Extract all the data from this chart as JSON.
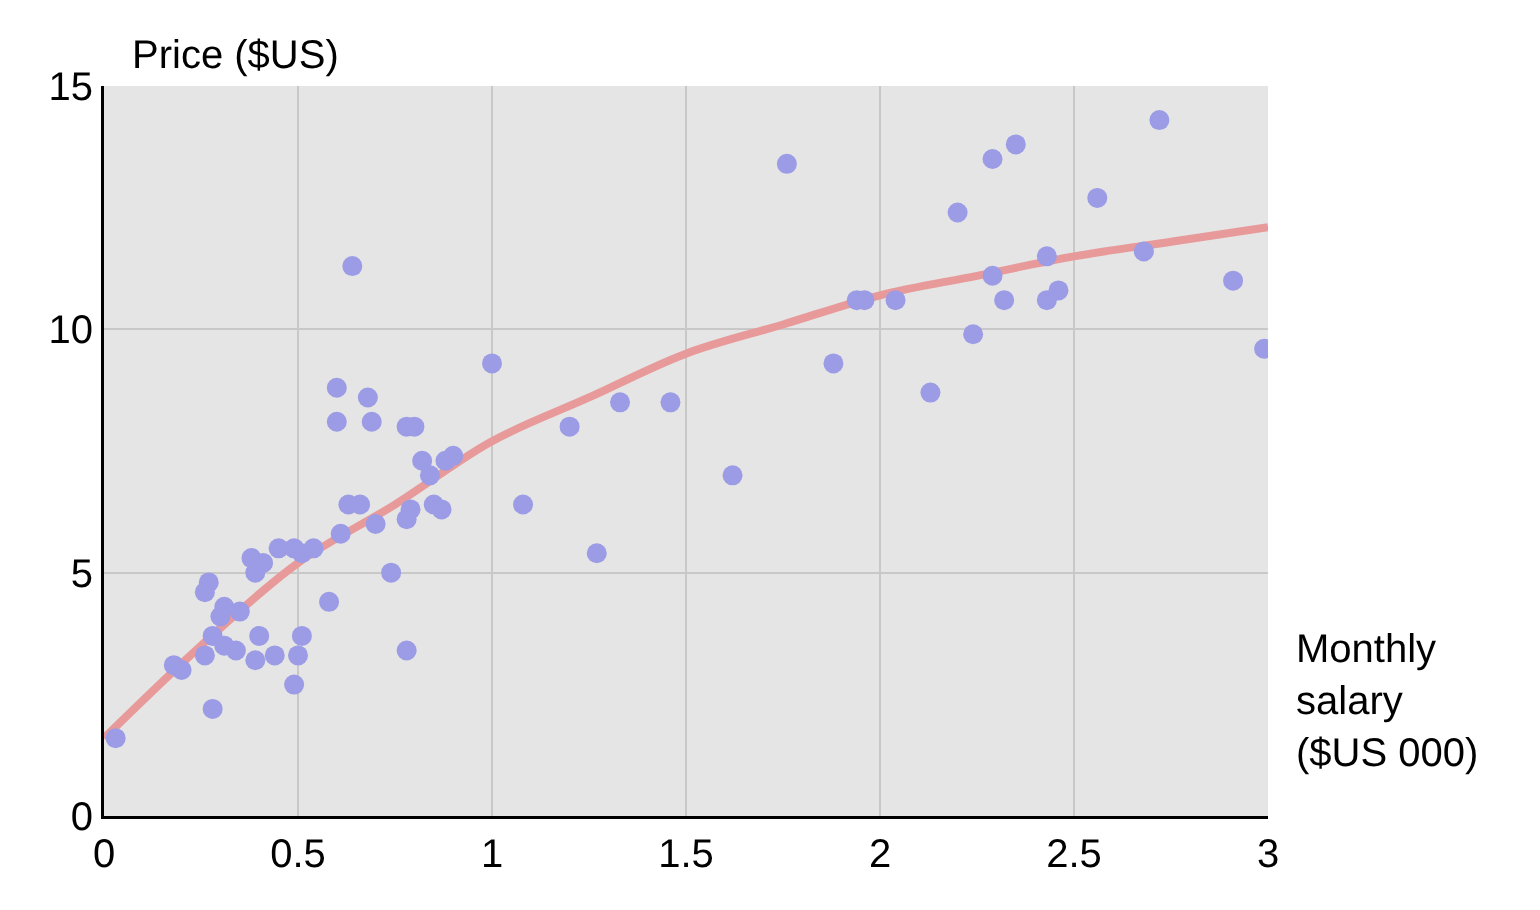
{
  "chart_data": {
    "type": "scatter",
    "xlabel": "Monthly salary ($US 000)",
    "ylabel": "Price ($US)",
    "xlim": [
      0,
      3
    ],
    "ylim": [
      0,
      15
    ],
    "xticks": [
      0,
      0.5,
      1,
      1.5,
      2,
      2.5,
      3
    ],
    "yticks": [
      0,
      5,
      10,
      15
    ],
    "grid": true,
    "marker": "circle",
    "series": [
      {
        "color": "#9b9be6",
        "x": [
          0.03,
          0.18,
          0.2,
          0.26,
          0.28,
          0.28,
          0.31,
          0.34,
          0.3,
          0.31,
          0.35,
          0.26,
          0.27,
          0.4,
          0.39,
          0.44,
          0.38,
          0.39,
          0.41,
          0.45,
          0.49,
          0.51,
          0.54,
          0.51,
          0.5,
          0.49,
          0.58,
          0.61,
          0.74,
          0.78,
          0.63,
          0.66,
          0.7,
          0.78,
          0.79,
          0.85,
          0.87,
          0.84,
          0.82,
          0.88,
          0.9,
          0.6,
          0.69,
          0.6,
          0.68,
          0.78,
          0.8,
          0.64,
          1.0,
          1.2,
          1.33,
          1.46,
          1.08,
          1.27,
          1.76,
          1.62,
          1.88,
          1.94,
          1.96,
          2.04,
          2.13,
          2.24,
          2.2,
          2.29,
          2.35,
          2.29,
          2.32,
          2.43,
          2.43,
          2.46,
          2.56,
          2.68,
          2.72,
          2.91,
          2.99
        ],
        "values": [
          1.6,
          3.1,
          3.0,
          3.3,
          2.2,
          3.7,
          3.5,
          3.4,
          4.1,
          4.3,
          4.2,
          4.6,
          4.8,
          3.7,
          3.2,
          3.3,
          5.3,
          5.0,
          5.2,
          5.5,
          5.5,
          5.4,
          5.5,
          3.7,
          3.3,
          2.7,
          4.4,
          5.8,
          5.0,
          3.4,
          6.4,
          6.4,
          6.0,
          6.1,
          6.3,
          6.4,
          6.3,
          7.0,
          7.3,
          7.3,
          7.4,
          8.1,
          8.1,
          8.8,
          8.6,
          8.0,
          8.0,
          11.3,
          9.3,
          8.0,
          8.5,
          8.5,
          6.4,
          5.4,
          13.4,
          7.0,
          9.3,
          10.6,
          10.6,
          10.6,
          8.7,
          9.9,
          12.4,
          13.5,
          13.8,
          11.1,
          10.6,
          11.5,
          10.6,
          10.8,
          12.7,
          11.6,
          14.3,
          11.0,
          9.6
        ]
      },
      {
        "type": "line",
        "color": "#e89a9a",
        "marker": "none",
        "line_style": "solid",
        "x": [
          0,
          0.25,
          0.5,
          0.75,
          1,
          1.25,
          1.5,
          1.75,
          2,
          2.25,
          2.5,
          2.75,
          3
        ],
        "values": [
          1.6,
          3.5,
          5.2,
          6.4,
          7.7,
          8.6,
          9.5,
          10.1,
          10.7,
          11.1,
          11.5,
          11.8,
          12.1
        ]
      }
    ]
  }
}
